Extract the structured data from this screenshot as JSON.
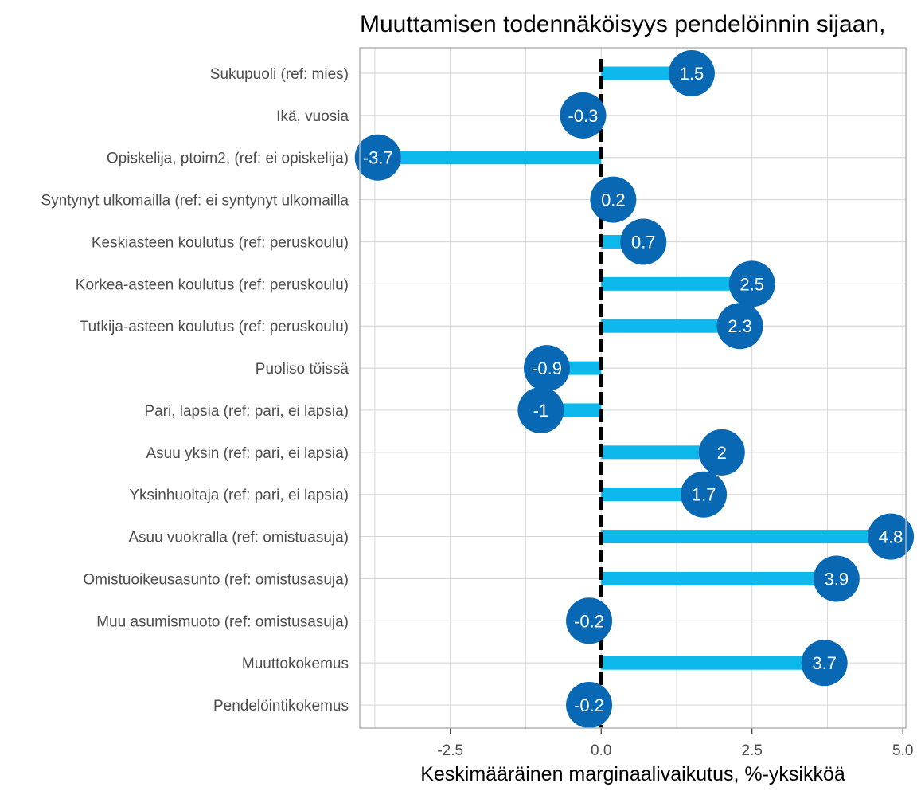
{
  "chart_data": {
    "type": "bar",
    "subtype": "lollipop-horizontal",
    "title": "Muuttamisen todennäköisyys pendelöinnin sijaan,",
    "xlabel": "Keskimääräinen marginaalivaikutus, %-yksikköä",
    "ylabel": "",
    "xlim": [
      -4.0,
      5.05
    ],
    "xticks": [
      -2.5,
      0.0,
      2.5,
      5.0
    ],
    "xtick_labels": [
      "-2.5",
      "0.0",
      "2.5",
      "5.0"
    ],
    "reference_line": 0,
    "grid": true,
    "categories": [
      "Sukupuoli (ref: mies)",
      "Ikä, vuosia",
      "Opiskelija, ptoim2, (ref: ei opiskelija)",
      "Syntynyt ulkomailla (ref: ei syntynyt ulkomailla",
      "Keskiasteen koulutus (ref: peruskoulu)",
      "Korkea-asteen koulutus (ref: peruskoulu)",
      "Tutkija-asteen koulutus (ref: peruskoulu)",
      "Puoliso töissä",
      "Pari, lapsia (ref: pari, ei lapsia)",
      "Asuu yksin (ref: pari, ei lapsia)",
      "Yksinhuoltaja (ref: pari, ei lapsia)",
      "Asuu vuokralla (ref: omistuasuja)",
      "Omistuoikeusasunto (ref: omistusasuja)",
      "Muu asumismuoto (ref: omistusasuja)",
      "Muuttokokemus",
      "Pendelöintikokemus"
    ],
    "values": [
      1.5,
      -0.3,
      -3.7,
      0.2,
      0.7,
      2.5,
      2.3,
      -0.9,
      -1,
      2,
      1.7,
      4.8,
      3.9,
      -0.2,
      3.7,
      -0.2
    ],
    "value_labels": [
      "1.5",
      "-0.3",
      "-3.7",
      "0.2",
      "0.7",
      "2.5",
      "2.3",
      "-0.9",
      "-1",
      "2",
      "1.7",
      "4.8",
      "3.9",
      "-0.2",
      "3.7",
      "-0.2"
    ],
    "colors": {
      "bar": "#0DB8EC",
      "dot": "#0868B3",
      "dot_text": "#FFFFFF",
      "grid": "#D9D9D9",
      "panel_border": "#B3B3B3",
      "zero_line": "#000000"
    }
  }
}
